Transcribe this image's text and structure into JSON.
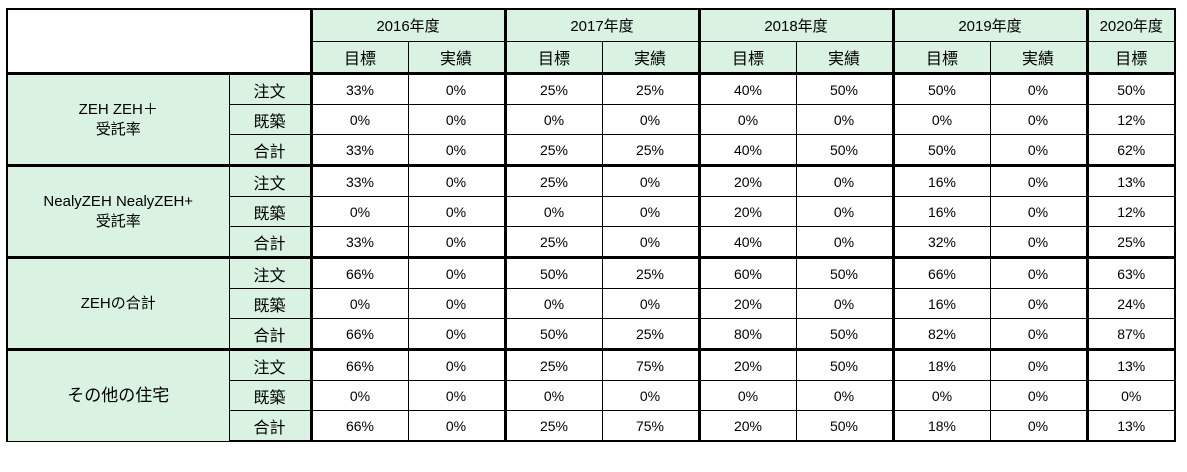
{
  "header": {
    "years": [
      "2016年度",
      "2017年度",
      "2018年度",
      "2019年度",
      "2020年度"
    ],
    "target_label": "目標",
    "actual_label": "実績"
  },
  "groups": [
    {
      "label_line1": "ZEH ZEH＋",
      "label_line2": "受託率",
      "rows": [
        {
          "sub": "注文",
          "values": [
            "33%",
            "0%",
            "25%",
            "25%",
            "40%",
            "50%",
            "50%",
            "0%",
            "50%"
          ]
        },
        {
          "sub": "既築",
          "values": [
            "0%",
            "0%",
            "0%",
            "0%",
            "0%",
            "0%",
            "0%",
            "0%",
            "12%"
          ]
        },
        {
          "sub": "合計",
          "values": [
            "33%",
            "0%",
            "25%",
            "25%",
            "40%",
            "50%",
            "50%",
            "0%",
            "62%"
          ]
        }
      ]
    },
    {
      "label_line1": "NealyZEH NealyZEH+",
      "label_line2": "受託率",
      "rows": [
        {
          "sub": "注文",
          "values": [
            "33%",
            "0%",
            "25%",
            "0%",
            "20%",
            "0%",
            "16%",
            "0%",
            "13%"
          ]
        },
        {
          "sub": "既築",
          "values": [
            "0%",
            "0%",
            "0%",
            "0%",
            "20%",
            "0%",
            "16%",
            "0%",
            "12%"
          ]
        },
        {
          "sub": "合計",
          "values": [
            "33%",
            "0%",
            "25%",
            "0%",
            "40%",
            "0%",
            "32%",
            "0%",
            "25%"
          ]
        }
      ]
    },
    {
      "label_line1": "ZEHの合計",
      "label_line2": "",
      "rows": [
        {
          "sub": "注文",
          "values": [
            "66%",
            "0%",
            "50%",
            "25%",
            "60%",
            "50%",
            "66%",
            "0%",
            "63%"
          ]
        },
        {
          "sub": "既築",
          "values": [
            "0%",
            "0%",
            "0%",
            "0%",
            "20%",
            "0%",
            "16%",
            "0%",
            "24%"
          ]
        },
        {
          "sub": "合計",
          "values": [
            "66%",
            "0%",
            "50%",
            "25%",
            "80%",
            "50%",
            "82%",
            "0%",
            "87%"
          ]
        }
      ]
    },
    {
      "label_line1": "その他の住宅",
      "label_line2": "",
      "rows": [
        {
          "sub": "注文",
          "values": [
            "66%",
            "0%",
            "25%",
            "75%",
            "20%",
            "50%",
            "18%",
            "0%",
            "13%"
          ]
        },
        {
          "sub": "既築",
          "values": [
            "0%",
            "0%",
            "0%",
            "0%",
            "0%",
            "0%",
            "0%",
            "0%",
            "0%"
          ]
        },
        {
          "sub": "合計",
          "values": [
            "66%",
            "0%",
            "25%",
            "75%",
            "20%",
            "50%",
            "18%",
            "0%",
            "13%"
          ]
        }
      ]
    }
  ]
}
